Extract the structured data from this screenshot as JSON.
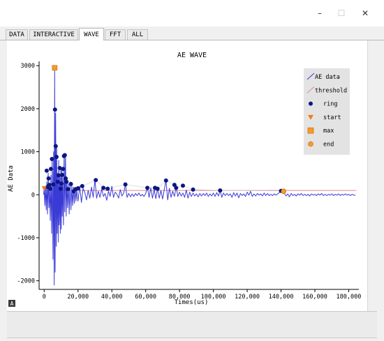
{
  "window": {
    "controls": {
      "minimize": "–",
      "maximize": "☐",
      "close": "✕"
    }
  },
  "tabs": [
    {
      "label": "DATA",
      "active": false
    },
    {
      "label": "INTERACTIVE",
      "active": false
    },
    {
      "label": "WAVE",
      "active": true
    },
    {
      "label": "FFT",
      "active": false
    },
    {
      "label": "ALL",
      "active": false
    }
  ],
  "plot_badge": "A",
  "colors": {
    "wave": "#3a3ad6",
    "threshold": "#d98a8a",
    "ring": "#0b1780",
    "start": "#f07d19",
    "max": "#f79a2a",
    "end": "#f79a2a",
    "legend_bg": "#e3e3e3"
  },
  "chart_data": {
    "type": "line",
    "title": "AE WAVE",
    "xlabel": "Times(us)",
    "ylabel": "AE Data",
    "xlim": [
      -3000,
      186000
    ],
    "ylim": [
      -2200,
      3100
    ],
    "xticks": [
      0,
      20000,
      40000,
      60000,
      80000,
      100000,
      120000,
      140000,
      160000,
      180000
    ],
    "xtick_labels": [
      "0",
      "20,000",
      "40,000",
      "60,000",
      "80,000",
      "100,000",
      "120,000",
      "140,000",
      "160,000",
      "180,000"
    ],
    "yticks": [
      -2000,
      -1000,
      0,
      1000,
      2000,
      3000
    ],
    "ytick_labels": [
      "-2000",
      "-1000",
      "0",
      "1000",
      "2000",
      "3000"
    ],
    "grid": false,
    "legend_position": "top-right",
    "legend": [
      {
        "label": "AE data",
        "marker": "line"
      },
      {
        "label": "threshold",
        "marker": "line"
      },
      {
        "label": "ring",
        "marker": "circle"
      },
      {
        "label": "start",
        "marker": "triangle-down"
      },
      {
        "label": "max",
        "marker": "square"
      },
      {
        "label": "end",
        "marker": "circle"
      }
    ],
    "threshold": 100,
    "wave": [
      [
        -300,
        0
      ],
      [
        0,
        150
      ],
      [
        400,
        -250
      ],
      [
        800,
        200
      ],
      [
        1200,
        -350
      ],
      [
        1600,
        300
      ],
      [
        2000,
        -450
      ],
      [
        2400,
        500
      ],
      [
        2800,
        -300
      ],
      [
        3200,
        200
      ],
      [
        3600,
        -600
      ],
      [
        4000,
        450
      ],
      [
        4400,
        -900
      ],
      [
        4800,
        800
      ],
      [
        5200,
        -1500
      ],
      [
        5600,
        1000
      ],
      [
        5900,
        -2100
      ],
      [
        6200,
        2950
      ],
      [
        6500,
        -1800
      ],
      [
        6800,
        1900
      ],
      [
        7100,
        -1200
      ],
      [
        7400,
        1150
      ],
      [
        7700,
        -900
      ],
      [
        8000,
        500
      ],
      [
        8300,
        -1100
      ],
      [
        8600,
        800
      ],
      [
        8900,
        -700
      ],
      [
        9200,
        400
      ],
      [
        9500,
        -900
      ],
      [
        9800,
        650
      ],
      [
        10100,
        -800
      ],
      [
        10400,
        600
      ],
      [
        10700,
        -500
      ],
      [
        11000,
        400
      ],
      [
        11400,
        -700
      ],
      [
        11800,
        900
      ],
      [
        12200,
        -400
      ],
      [
        12600,
        920
      ],
      [
        13000,
        -500
      ],
      [
        13400,
        350
      ],
      [
        13800,
        -300
      ],
      [
        14300,
        250
      ],
      [
        14800,
        -450
      ],
      [
        15300,
        300
      ],
      [
        15800,
        -350
      ],
      [
        16300,
        200
      ],
      [
        16800,
        -250
      ],
      [
        17300,
        180
      ],
      [
        17800,
        -200
      ],
      [
        18300,
        150
      ],
      [
        18800,
        -150
      ],
      [
        19300,
        120
      ],
      [
        20000,
        -150
      ],
      [
        21000,
        200
      ],
      [
        22000,
        -180
      ],
      [
        23000,
        150
      ],
      [
        24000,
        60
      ],
      [
        25000,
        -120
      ],
      [
        26000,
        100
      ],
      [
        27000,
        -80
      ],
      [
        28000,
        180
      ],
      [
        29000,
        -60
      ],
      [
        30000,
        350
      ],
      [
        31000,
        -80
      ],
      [
        32000,
        80
      ],
      [
        33000,
        -60
      ],
      [
        34000,
        130
      ],
      [
        35000,
        -40
      ],
      [
        36000,
        30
      ],
      [
        37000,
        -130
      ],
      [
        38000,
        80
      ],
      [
        39000,
        -40
      ],
      [
        40000,
        200
      ],
      [
        41000,
        -60
      ],
      [
        42000,
        60
      ],
      [
        43000,
        10
      ],
      [
        44000,
        -80
      ],
      [
        45000,
        120
      ],
      [
        46000,
        -30
      ],
      [
        47000,
        40
      ],
      [
        48000,
        240
      ],
      [
        49000,
        -60
      ],
      [
        50000,
        30
      ],
      [
        51000,
        -50
      ],
      [
        52000,
        20
      ],
      [
        53000,
        -40
      ],
      [
        54000,
        30
      ],
      [
        55000,
        -20
      ],
      [
        56000,
        40
      ],
      [
        57000,
        -30
      ],
      [
        58000,
        10
      ],
      [
        59000,
        -40
      ],
      [
        60000,
        30
      ],
      [
        61000,
        180
      ],
      [
        62000,
        -60
      ],
      [
        63000,
        160
      ],
      [
        64000,
        -80
      ],
      [
        65000,
        120
      ],
      [
        66000,
        -90
      ],
      [
        67000,
        140
      ],
      [
        68000,
        -80
      ],
      [
        69000,
        100
      ],
      [
        70000,
        -100
      ],
      [
        71000,
        120
      ],
      [
        72000,
        330
      ],
      [
        73000,
        -120
      ],
      [
        74000,
        150
      ],
      [
        75000,
        -60
      ],
      [
        76000,
        80
      ],
      [
        77000,
        -40
      ],
      [
        78000,
        180
      ],
      [
        79000,
        -40
      ],
      [
        80000,
        60
      ],
      [
        81000,
        -30
      ],
      [
        82000,
        40
      ],
      [
        83000,
        -60
      ],
      [
        84000,
        110
      ],
      [
        85000,
        -80
      ],
      [
        86000,
        60
      ],
      [
        87000,
        -40
      ],
      [
        88000,
        40
      ],
      [
        89000,
        -30
      ],
      [
        90000,
        20
      ],
      [
        91000,
        -50
      ],
      [
        92000,
        30
      ],
      [
        93000,
        -30
      ],
      [
        94000,
        30
      ],
      [
        95000,
        -20
      ],
      [
        96000,
        40
      ],
      [
        97000,
        -40
      ],
      [
        98000,
        20
      ],
      [
        99000,
        -30
      ],
      [
        100000,
        40
      ],
      [
        101000,
        -40
      ],
      [
        102000,
        50
      ],
      [
        103000,
        -30
      ],
      [
        104000,
        100
      ],
      [
        105000,
        -60
      ],
      [
        106000,
        40
      ],
      [
        107000,
        -20
      ],
      [
        108000,
        30
      ],
      [
        109000,
        -20
      ],
      [
        110000,
        20
      ],
      [
        111000,
        -60
      ],
      [
        112000,
        50
      ],
      [
        113000,
        -30
      ],
      [
        114000,
        40
      ],
      [
        115000,
        -70
      ],
      [
        116000,
        30
      ],
      [
        117000,
        -20
      ],
      [
        118000,
        20
      ],
      [
        119000,
        -40
      ],
      [
        120000,
        60
      ],
      [
        121000,
        -10
      ],
      [
        122000,
        80
      ],
      [
        123000,
        -40
      ],
      [
        124000,
        20
      ],
      [
        125000,
        -30
      ],
      [
        126000,
        30
      ],
      [
        127000,
        -10
      ],
      [
        128000,
        20
      ],
      [
        129000,
        -30
      ],
      [
        130000,
        40
      ],
      [
        131000,
        -20
      ],
      [
        132000,
        30
      ],
      [
        133000,
        -20
      ],
      [
        134000,
        10
      ],
      [
        135000,
        -20
      ],
      [
        136000,
        20
      ],
      [
        137000,
        -10
      ],
      [
        138000,
        20
      ],
      [
        139000,
        50
      ],
      [
        140000,
        90
      ],
      [
        141000,
        70
      ],
      [
        142000,
        30
      ],
      [
        143000,
        -30
      ],
      [
        144000,
        20
      ],
      [
        145000,
        -50
      ],
      [
        146000,
        30
      ],
      [
        147000,
        -20
      ],
      [
        148000,
        10
      ],
      [
        149000,
        -30
      ],
      [
        150000,
        20
      ],
      [
        151000,
        -10
      ],
      [
        152000,
        30
      ],
      [
        153000,
        -20
      ],
      [
        154000,
        10
      ],
      [
        155000,
        -20
      ],
      [
        156000,
        10
      ],
      [
        157000,
        -30
      ],
      [
        158000,
        20
      ],
      [
        159000,
        -10
      ],
      [
        160000,
        10
      ],
      [
        161000,
        -20
      ],
      [
        162000,
        20
      ],
      [
        163000,
        -10
      ],
      [
        164000,
        30
      ],
      [
        165000,
        -20
      ],
      [
        166000,
        10
      ],
      [
        167000,
        -20
      ],
      [
        168000,
        10
      ],
      [
        169000,
        -10
      ],
      [
        170000,
        20
      ],
      [
        171000,
        -20
      ],
      [
        172000,
        10
      ],
      [
        173000,
        -10
      ],
      [
        174000,
        20
      ],
      [
        175000,
        -20
      ],
      [
        176000,
        10
      ],
      [
        177000,
        -10
      ],
      [
        178000,
        20
      ],
      [
        179000,
        -10
      ],
      [
        180000,
        10
      ],
      [
        181000,
        -20
      ],
      [
        182000,
        10
      ],
      [
        183000,
        -10
      ],
      [
        184000,
        -10
      ]
    ],
    "ring": [
      [
        1500,
        560
      ],
      [
        2000,
        180
      ],
      [
        2600,
        380
      ],
      [
        3000,
        230
      ],
      [
        3600,
        140
      ],
      [
        4000,
        600
      ],
      [
        4600,
        830
      ],
      [
        5400,
        240
      ],
      [
        6400,
        1980
      ],
      [
        6800,
        1130
      ],
      [
        7300,
        880
      ],
      [
        8000,
        300
      ],
      [
        8500,
        450
      ],
      [
        9200,
        620
      ],
      [
        9800,
        140
      ],
      [
        10200,
        260
      ],
      [
        10700,
        460
      ],
      [
        11200,
        600
      ],
      [
        11700,
        900
      ],
      [
        12200,
        920
      ],
      [
        12700,
        380
      ],
      [
        13200,
        300
      ],
      [
        14000,
        130
      ],
      [
        15800,
        250
      ],
      [
        17500,
        80
      ],
      [
        18600,
        130
      ],
      [
        20000,
        150
      ],
      [
        22500,
        200
      ],
      [
        30500,
        340
      ],
      [
        35000,
        160
      ],
      [
        37500,
        140
      ],
      [
        48000,
        240
      ],
      [
        61000,
        160
      ],
      [
        65500,
        160
      ],
      [
        67000,
        140
      ],
      [
        72000,
        330
      ],
      [
        77000,
        230
      ],
      [
        78000,
        160
      ],
      [
        82000,
        210
      ],
      [
        88000,
        120
      ],
      [
        104000,
        100
      ],
      [
        140000,
        90
      ]
    ],
    "start": [
      [
        0,
        150
      ]
    ],
    "max": [
      [
        6200,
        2950
      ]
    ],
    "end": [
      [
        141500,
        80
      ]
    ]
  }
}
